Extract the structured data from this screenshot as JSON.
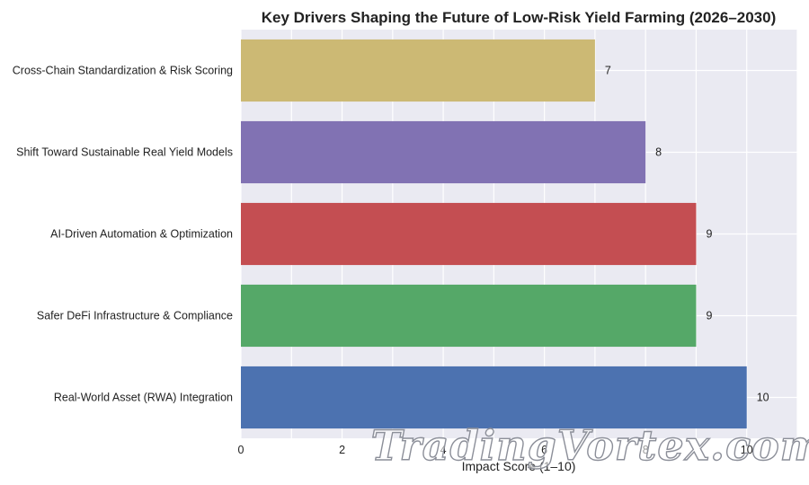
{
  "chart_data": {
    "type": "bar",
    "orientation": "horizontal",
    "title": "Key Drivers Shaping the Future of Low-Risk Yield Farming (2026–2030)",
    "xlabel": "Impact Score (1–10)",
    "ylabel": "",
    "xlim": [
      0,
      11
    ],
    "xticks": [
      0,
      2,
      4,
      6,
      8,
      10
    ],
    "grid": true,
    "categories": [
      "Cross-Chain Standardization & Risk Scoring",
      "Shift Toward Sustainable Real Yield Models",
      "AI-Driven Automation & Optimization",
      "Safer DeFi Infrastructure & Compliance",
      "Real-World Asset (RWA) Integration"
    ],
    "values": [
      7,
      8,
      9,
      9,
      10
    ],
    "colors": [
      "#ccb974",
      "#8172b3",
      "#c44e52",
      "#55a868",
      "#4c72b0"
    ],
    "plot_background": "#eaeaf2"
  },
  "watermark": {
    "text": "TradingVortex.com"
  }
}
